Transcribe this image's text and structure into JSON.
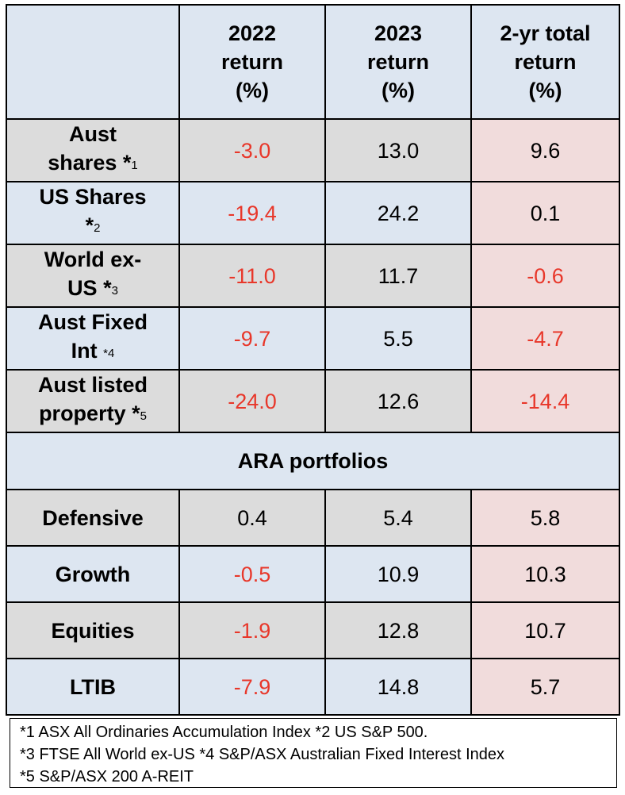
{
  "headers": {
    "c2022": [
      "2022",
      "return",
      "(%)"
    ],
    "c2023": [
      "2023",
      "return",
      "(%)"
    ],
    "c2yr": [
      "2-yr total",
      "return",
      "(%)"
    ]
  },
  "rows": [
    {
      "label1": "Aust",
      "label2": "shares *",
      "fn": "1",
      "v2022": "-3.0",
      "v2023": "13.0",
      "v2yr": "9.6"
    },
    {
      "label1": "US Shares",
      "label2": "*",
      "fn": "2",
      "v2022": "-19.4",
      "v2023": "24.2",
      "v2yr": "0.1"
    },
    {
      "label1": "World ex-",
      "label2": "US *",
      "fn": "3",
      "v2022": "-11.0",
      "v2023": "11.7",
      "v2yr": "-0.6"
    },
    {
      "label1": "Aust Fixed",
      "label2": "Int ",
      "fn": "*4",
      "v2022": "-9.7",
      "v2023": "5.5",
      "v2yr": "-4.7"
    },
    {
      "label1": "Aust listed",
      "label2": "property *",
      "fn": "5",
      "v2022": "-24.0",
      "v2023": "12.6",
      "v2yr": "-14.4"
    }
  ],
  "section_title": "ARA portfolios",
  "portfolios": [
    {
      "label": "Defensive",
      "v2022": "0.4",
      "v2023": "5.4",
      "v2yr": "5.8"
    },
    {
      "label": "Growth",
      "v2022": "-0.5",
      "v2023": "10.9",
      "v2yr": "10.3"
    },
    {
      "label": "Equities",
      "v2022": "-1.9",
      "v2023": "12.8",
      "v2yr": "10.7"
    },
    {
      "label": "LTIB",
      "v2022": "-7.9",
      "v2023": "14.8",
      "v2yr": "5.7"
    }
  ],
  "footnotes": [
    "*1 ASX All Ordinaries Accumulation Index   *2 US S&P 500.",
    "*3 FTSE All World ex-US  *4 S&P/ASX Australian Fixed Interest Index",
    "*5 S&P/ASX 200 A-REIT"
  ],
  "colors": {
    "negative": "#e8372a",
    "blue": "#dde6f1",
    "grey": "#dcdcdc",
    "pink": "#f1dcdc"
  }
}
